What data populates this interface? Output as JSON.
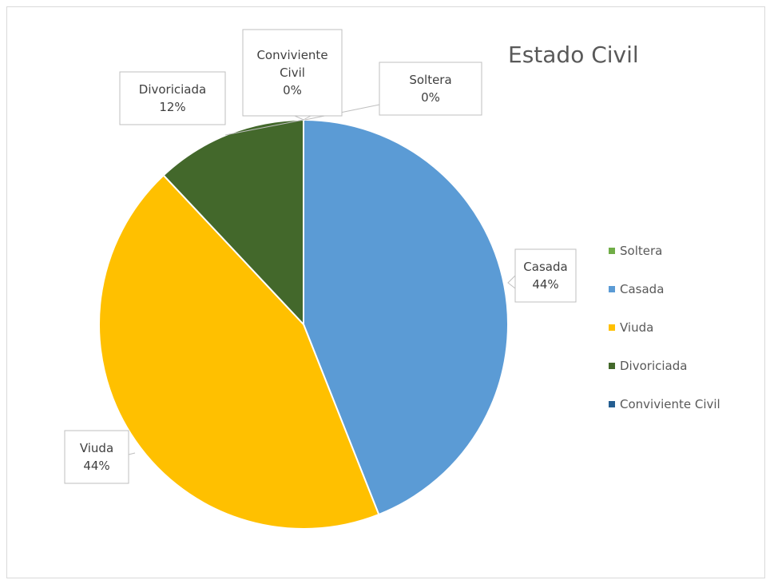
{
  "chart_data": {
    "type": "pie",
    "title": "Estado Civil",
    "categories": [
      "Soltera",
      "Casada",
      "Viuda",
      "Divoriciada",
      "Conviviente Civil"
    ],
    "values": [
      0,
      44,
      44,
      12,
      0
    ],
    "colors": [
      "#70ad47",
      "#5b9bd5",
      "#ffc000",
      "#43682b",
      "#255e91"
    ],
    "data_labels": [
      {
        "category": "Soltera",
        "lines": [
          "Soltera",
          "0%"
        ]
      },
      {
        "category": "Casada",
        "lines": [
          "Casada",
          "44%"
        ]
      },
      {
        "category": "Viuda",
        "lines": [
          "Viuda",
          "44%"
        ]
      },
      {
        "category": "Divoriciada",
        "lines": [
          "Divoriciada",
          "12%"
        ]
      },
      {
        "category": "Conviviente Civil",
        "lines": [
          "Conviviente",
          "Civil",
          "0%"
        ]
      }
    ],
    "legend": {
      "position": "right",
      "entries": [
        "Soltera",
        "Casada",
        "Viuda",
        "Divoriciada",
        "Conviviente Civil"
      ]
    }
  }
}
